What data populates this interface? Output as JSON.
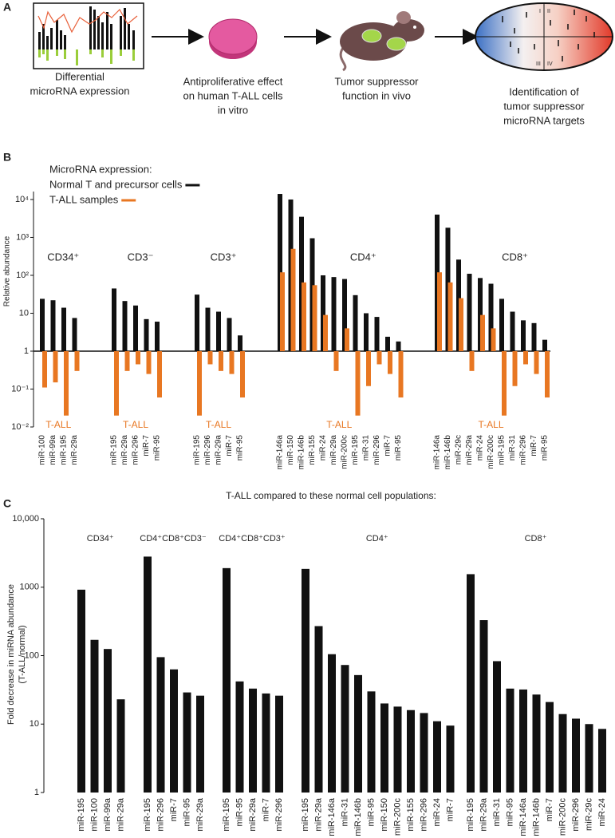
{
  "panel_labels": [
    "A",
    "B",
    "C"
  ],
  "workflow": {
    "steps": [
      [
        "Differential",
        "microRNA expression"
      ],
      [
        "Antiproliferative effect",
        "on human T-ALL cells",
        "in vitro"
      ],
      [
        "Tumor suppressor",
        "function in vivo"
      ],
      [
        "Identification of",
        "tumor suppressor",
        "microRNA targets"
      ]
    ],
    "quadrant_labels": [
      "I",
      "II",
      "III",
      "IV"
    ]
  },
  "chart_data": [
    {
      "type": "bar",
      "legend_title": "MicroRNA expression:",
      "ylabel": "Relative abundance",
      "log_scale": true,
      "ylim": [
        0.01,
        30000
      ],
      "yticks": [
        {
          "value": 0.01,
          "label": "10⁻²"
        },
        {
          "value": 0.1,
          "label": "10⁻¹"
        },
        1,
        10,
        {
          "value": 100,
          "label": "10²"
        },
        {
          "value": 1000,
          "label": "10³"
        },
        {
          "value": 10000,
          "label": "10⁴"
        }
      ],
      "series": [
        {
          "name": "Normal T and precursor cells",
          "color": "#111111"
        },
        {
          "name": "T-ALL samples",
          "color": "#e87722"
        }
      ],
      "groups": [
        {
          "name": "CD34⁺",
          "note": "T-ALL",
          "categories": [
            "miR-100",
            "miR-99a",
            "miR-195",
            "miR-29a"
          ],
          "series": [
            {
              "values": [
                24,
                22,
                14,
                7.5
              ]
            },
            {
              "values": [
                0.11,
                0.15,
                0.02,
                0.3
              ]
            }
          ]
        },
        {
          "name": "CD3⁻",
          "note": "T-ALL",
          "categories": [
            "miR-195",
            "miR-29a",
            "miR-296",
            "miR-7",
            "miR-95"
          ],
          "series": [
            {
              "values": [
                45,
                21,
                16,
                7,
                6
              ]
            },
            {
              "values": [
                0.02,
                0.3,
                0.45,
                0.25,
                0.06
              ]
            }
          ]
        },
        {
          "name": "CD3⁺",
          "note": "T-ALL",
          "categories": [
            "miR-195",
            "miR-296",
            "miR-29a",
            "miR-7",
            "miR-95"
          ],
          "series": [
            {
              "values": [
                31,
                14,
                11,
                7.5,
                2.6
              ]
            },
            {
              "values": [
                0.02,
                0.45,
                0.3,
                0.25,
                0.06
              ]
            }
          ]
        },
        {
          "name": "CD4⁺",
          "note": "T-ALL",
          "categories": [
            "miR-146a",
            "miR-150",
            "miR-146b",
            "miR-155",
            "miR-24",
            "miR-29a",
            "miR-200c",
            "miR-195",
            "miR-31",
            "miR-296",
            "miR-7",
            "miR-95"
          ],
          "series": [
            {
              "values": [
                14000,
                10000,
                3500,
                950,
                100,
                90,
                80,
                30,
                10,
                8,
                2.4,
                1.8
              ]
            },
            {
              "values": [
                120,
                500,
                65,
                55,
                9,
                0.3,
                4,
                0.02,
                0.12,
                0.45,
                0.25,
                0.06
              ]
            }
          ]
        },
        {
          "name": "CD8⁺",
          "note": "T-ALL",
          "categories": [
            "miR-146a",
            "miR-146b",
            "miR-29c",
            "miR-29a",
            "miR-24",
            "miR-200c",
            "miR-195",
            "miR-31",
            "miR-296",
            "miR-7",
            "miR-95"
          ],
          "series": [
            {
              "values": [
                4000,
                1800,
                260,
                110,
                85,
                60,
                24,
                11,
                6.5,
                5.5,
                2
              ]
            },
            {
              "values": [
                120,
                65,
                25,
                0.3,
                9,
                4,
                0.02,
                0.12,
                0.45,
                0.25,
                0.06
              ]
            }
          ]
        }
      ]
    },
    {
      "type": "bar",
      "title": "T-ALL compared to these normal cell populations:",
      "ylabel": [
        "Fold decrease in miRNA abundance",
        "(T-ALL/normal)"
      ],
      "log_scale": true,
      "color": "#111111",
      "ylim": [
        1,
        10000
      ],
      "yticks": [
        1,
        10,
        100,
        1000,
        {
          "value": 10000,
          "label": "10,000"
        }
      ],
      "groups": [
        {
          "name": "CD34⁺",
          "categories": [
            "miR-195",
            "miR-100",
            "miR-99a",
            "miR-29a"
          ],
          "values": [
            920,
            170,
            125,
            23
          ]
        },
        {
          "name": "CD4⁺CD8⁺CD3⁻",
          "categories": [
            "miR-195",
            "miR-296",
            "miR-7",
            "miR-95",
            "miR-29a"
          ],
          "values": [
            2800,
            95,
            63,
            29,
            26
          ]
        },
        {
          "name": "CD4⁺CD8⁺CD3⁺",
          "categories": [
            "miR-195",
            "miR-95",
            "miR-29a",
            "miR-7",
            "miR-296"
          ],
          "values": [
            1900,
            42,
            33,
            28,
            26
          ]
        },
        {
          "name": "CD4⁺",
          "categories": [
            "miR-195",
            "miR-29a",
            "miR-146a",
            "miR-31",
            "miR-146b",
            "miR-95",
            "miR-150",
            "miR-200c",
            "miR-155",
            "miR-296",
            "miR-24",
            "miR-7"
          ],
          "values": [
            1850,
            270,
            105,
            73,
            52,
            30,
            20,
            18,
            16,
            14.5,
            11,
            9.5
          ]
        },
        {
          "name": "CD8⁺",
          "categories": [
            "miR-195",
            "miR-29a",
            "miR-31",
            "miR-95",
            "miR-146a",
            "miR-146b",
            "miR-7",
            "miR-200c",
            "miR-296",
            "miR-29c",
            "miR-24"
          ],
          "values": [
            1550,
            330,
            83,
            33,
            32,
            27,
            21,
            14,
            12,
            10,
            8.5
          ]
        }
      ]
    }
  ]
}
